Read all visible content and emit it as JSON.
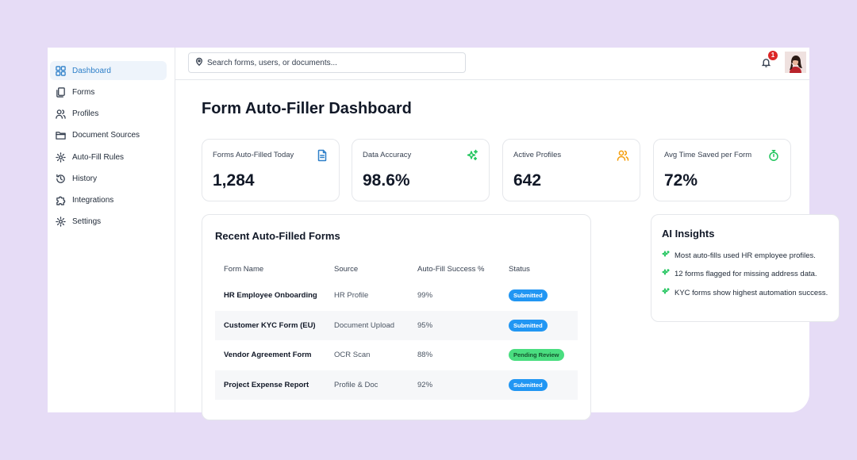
{
  "sidebar": {
    "items": [
      {
        "label": "Dashboard",
        "icon": "grid-icon",
        "active": true
      },
      {
        "label": "Forms",
        "icon": "files-icon"
      },
      {
        "label": "Profiles",
        "icon": "users-icon"
      },
      {
        "label": "Document Sources",
        "icon": "folder-icon"
      },
      {
        "label": "Auto-Fill Rules",
        "icon": "gear-icon"
      },
      {
        "label": "History",
        "icon": "history-icon"
      },
      {
        "label": "Integrations",
        "icon": "puzzle-icon"
      },
      {
        "label": "Settings",
        "icon": "gear-icon"
      }
    ]
  },
  "topbar": {
    "search_placeholder": "Search forms, users, or documents...",
    "notification_count": "1"
  },
  "page": {
    "title": "Form Auto-Filler Dashboard"
  },
  "stats": [
    {
      "label": "Forms Auto-Filled Today",
      "value": "1,284",
      "icon": "document-icon",
      "color": "#2f80c9"
    },
    {
      "label": "Data Accuracy",
      "value": "98.6%",
      "icon": "sparkles-icon",
      "color": "#22c55e"
    },
    {
      "label": "Active Profiles",
      "value": "642",
      "icon": "users-icon",
      "color": "#f59e0b"
    },
    {
      "label": "Avg Time Saved per Form",
      "value": "72%",
      "icon": "stopwatch-icon",
      "color": "#22c55e"
    }
  ],
  "recent": {
    "title": "Recent Auto-Filled Forms",
    "columns": [
      "Form Name",
      "Source",
      "Auto-Fill Success %",
      "Status"
    ],
    "rows": [
      {
        "name": "HR Employee Onboarding",
        "source": "HR Profile",
        "success": "99%",
        "status": "Submitted"
      },
      {
        "name": "Customer KYC Form (EU)",
        "source": "Document Upload",
        "success": "95%",
        "status": "Submitted"
      },
      {
        "name": "Vendor Agreement Form",
        "source": "OCR Scan",
        "success": "88%",
        "status": "Pending Review"
      },
      {
        "name": "Project Expense Report",
        "source": "Profile & Doc",
        "success": "92%",
        "status": "Submitted"
      }
    ]
  },
  "insights": {
    "title": "AI Insights",
    "items": [
      "Most auto-fills used HR employee profiles.",
      "12 forms flagged for missing address data.",
      "KYC forms show highest automation success."
    ]
  },
  "colors": {
    "accent": "#2f80c9",
    "submitted": "#2196f3",
    "pending": "#4ade80",
    "background": "#e6dcf6"
  }
}
